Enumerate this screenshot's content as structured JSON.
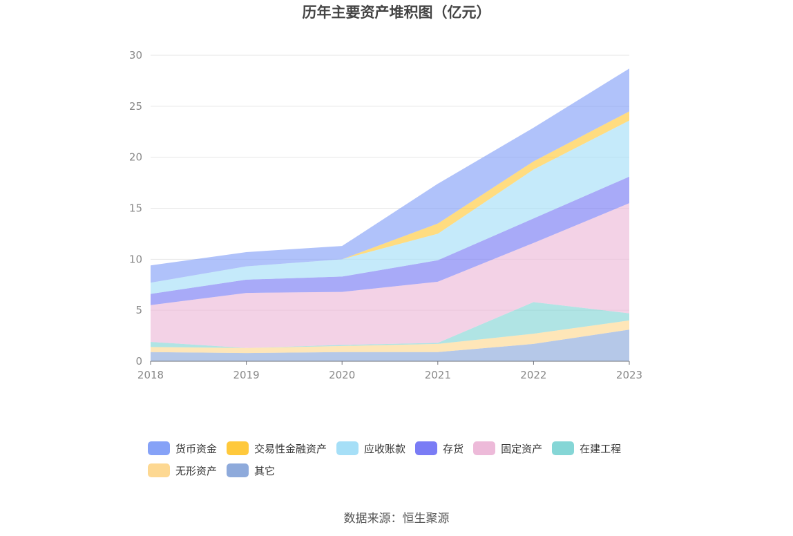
{
  "chart_data": {
    "type": "area",
    "stacked": true,
    "title": "历年主要资产堆积图（亿元）",
    "x": [
      "2018",
      "2019",
      "2020",
      "2021",
      "2022",
      "2023"
    ],
    "ylim": [
      0,
      30
    ],
    "yticks": [
      "0",
      "5",
      "10",
      "15",
      "20",
      "25",
      "30"
    ],
    "grid": true,
    "legend_position": "bottom",
    "series": [
      {
        "name": "其它",
        "color": "#8eaadb",
        "values": [
          0.9,
          0.8,
          0.9,
          0.9,
          1.7,
          3.1
        ]
      },
      {
        "name": "无形资产",
        "color": "#fdd892",
        "values": [
          0.5,
          0.5,
          0.6,
          0.8,
          1.0,
          0.9
        ]
      },
      {
        "name": "在建工程",
        "color": "#85d6d6",
        "values": [
          0.5,
          0.0,
          0.1,
          0.1,
          3.1,
          0.7
        ]
      },
      {
        "name": "固定资产",
        "color": "#edbad9",
        "values": [
          3.6,
          5.4,
          5.2,
          6.0,
          5.8,
          10.8
        ]
      },
      {
        "name": "存货",
        "color": "#7a7cf5",
        "values": [
          1.1,
          1.3,
          1.5,
          2.1,
          2.4,
          2.6
        ]
      },
      {
        "name": "应收账款",
        "color": "#a6dff7",
        "values": [
          1.1,
          1.3,
          1.7,
          2.6,
          4.8,
          5.5
        ]
      },
      {
        "name": "交易性金融资产",
        "color": "#ffc93c",
        "values": [
          0.0,
          0.0,
          0.0,
          1.0,
          0.8,
          0.9
        ]
      },
      {
        "name": "货币资金",
        "color": "#86a2f7",
        "values": [
          1.7,
          1.4,
          1.3,
          3.9,
          3.3,
          4.2
        ]
      }
    ],
    "legend_order": [
      "货币资金",
      "交易性金融资产",
      "应收账款",
      "存货",
      "固定资产",
      "在建工程",
      "无形资产",
      "其它"
    ]
  },
  "source_text": "数据来源：恒生聚源"
}
